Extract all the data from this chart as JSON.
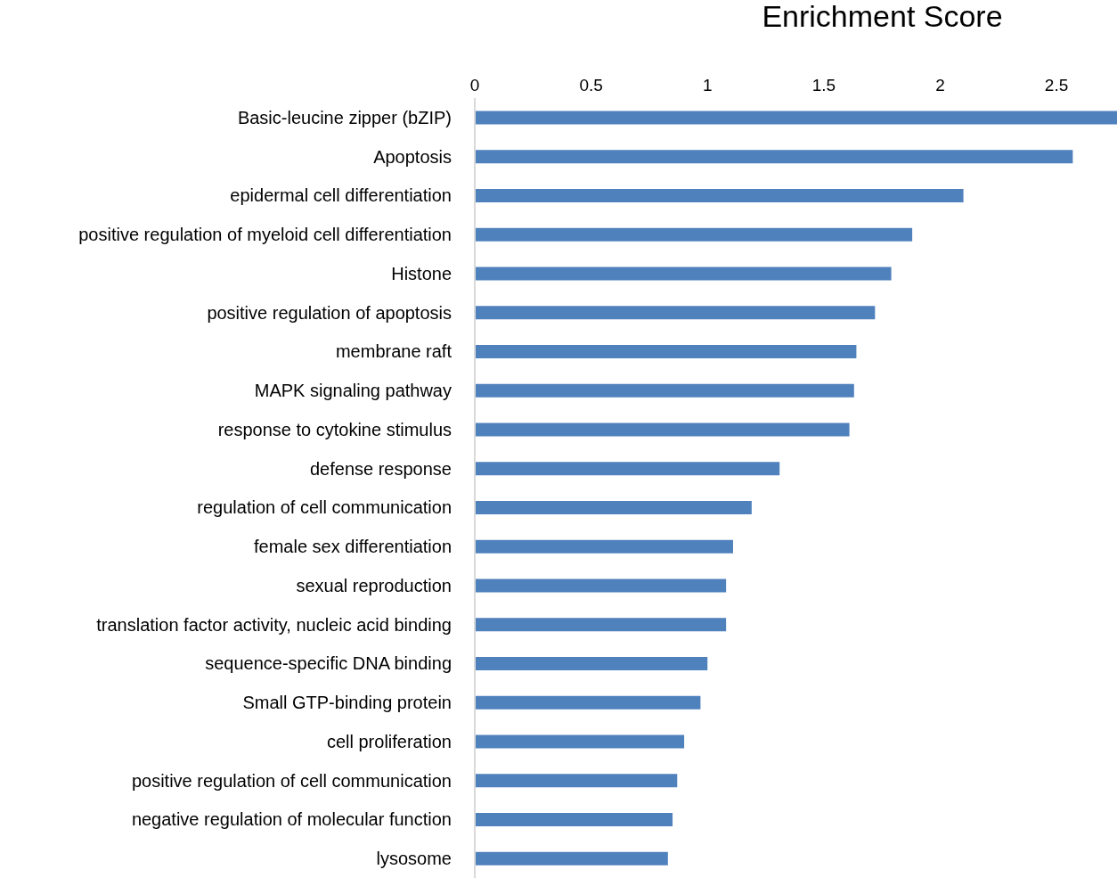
{
  "chart_data": {
    "type": "bar",
    "orientation": "horizontal",
    "xlabel": "Enrichment Score",
    "categories": [
      "Basic-leucine zipper (bZIP)",
      "Apoptosis",
      "epidermal cell differentiation",
      "positive regulation of myeloid cell differentiation",
      "Histone",
      "positive regulation of apoptosis",
      "membrane raft",
      "MAPK signaling pathway",
      "response to cytokine stimulus",
      "defense response",
      "regulation of cell communication",
      "female sex differentiation",
      "sexual reproduction",
      "translation factor activity, nucleic acid binding",
      "sequence-specific DNA binding",
      "Small GTP-binding protein",
      "cell proliferation",
      "positive regulation of cell communication",
      "negative regulation of molecular function",
      "lysosome"
    ],
    "values": [
      2.76,
      2.57,
      2.1,
      1.88,
      1.79,
      1.72,
      1.64,
      1.63,
      1.61,
      1.31,
      1.19,
      1.11,
      1.08,
      1.08,
      1.0,
      0.97,
      0.9,
      0.87,
      0.85,
      0.83
    ],
    "color": "#4f81bd",
    "xlim": [
      0,
      2.76
    ],
    "xticks": [
      0,
      0.5,
      1,
      1.5,
      2,
      2.5
    ],
    "grid": false,
    "legend": false
  }
}
